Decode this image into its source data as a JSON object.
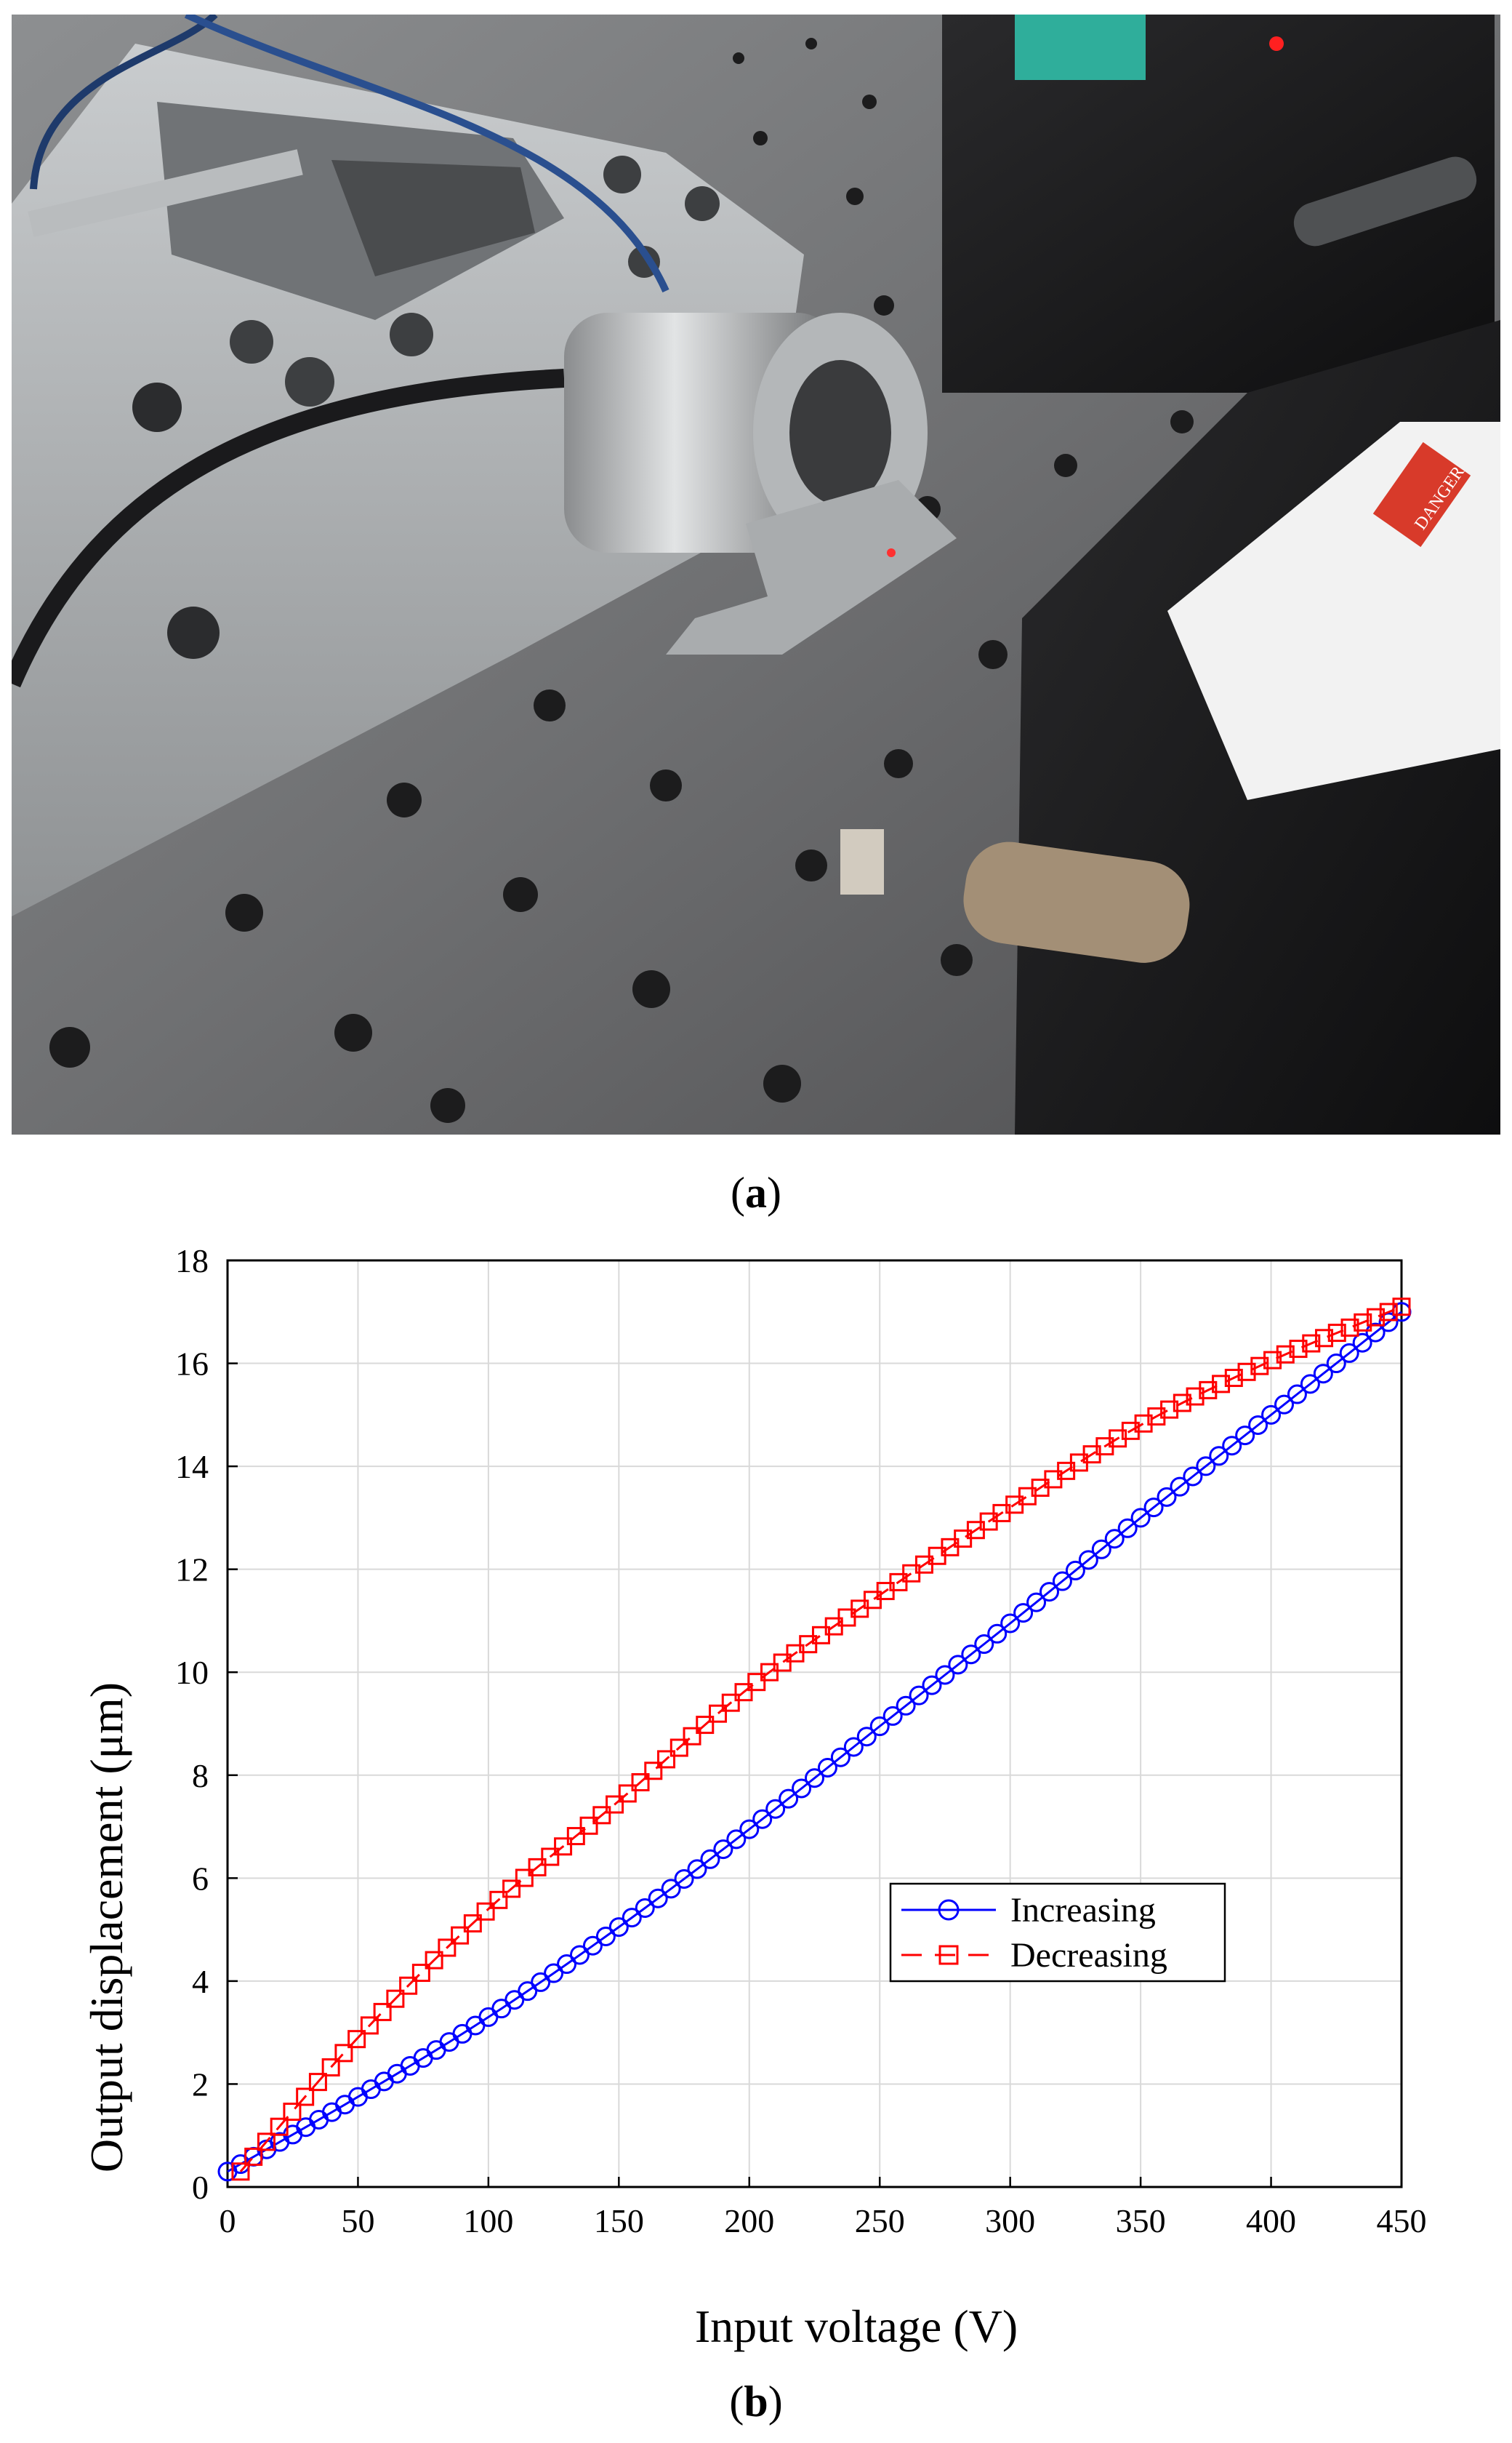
{
  "panels": {
    "a_label": "a",
    "b_label": "b"
  },
  "photo": {
    "warning_label_text": "DANGER"
  },
  "chart_data": {
    "type": "line",
    "xlabel": "Input voltage (V)",
    "ylabel": "Output displacement (μm)",
    "xlim": [
      0,
      450
    ],
    "ylim": [
      0,
      18
    ],
    "xticks": [
      0,
      50,
      100,
      150,
      200,
      250,
      300,
      350,
      400,
      450
    ],
    "yticks": [
      0,
      2,
      4,
      6,
      8,
      10,
      12,
      14,
      16,
      18
    ],
    "grid": true,
    "legend_position": "center-right",
    "series": [
      {
        "name": "Increasing",
        "color": "#0000ff",
        "marker": "circle",
        "line_style": "solid",
        "x": [
          0,
          50,
          100,
          150,
          200,
          250,
          300,
          350,
          400,
          450
        ],
        "y": [
          0.3,
          1.75,
          3.3,
          5.05,
          6.95,
          8.95,
          10.95,
          13.0,
          15.0,
          17.0
        ]
      },
      {
        "name": "Decreasing",
        "color": "#ff0000",
        "marker": "square",
        "line_style": "dashed",
        "x": [
          5,
          50,
          100,
          150,
          200,
          250,
          300,
          350,
          400,
          450
        ],
        "y": [
          0.3,
          2.9,
          5.4,
          7.5,
          9.7,
          11.5,
          13.2,
          14.8,
          16.05,
          17.1
        ]
      }
    ]
  }
}
